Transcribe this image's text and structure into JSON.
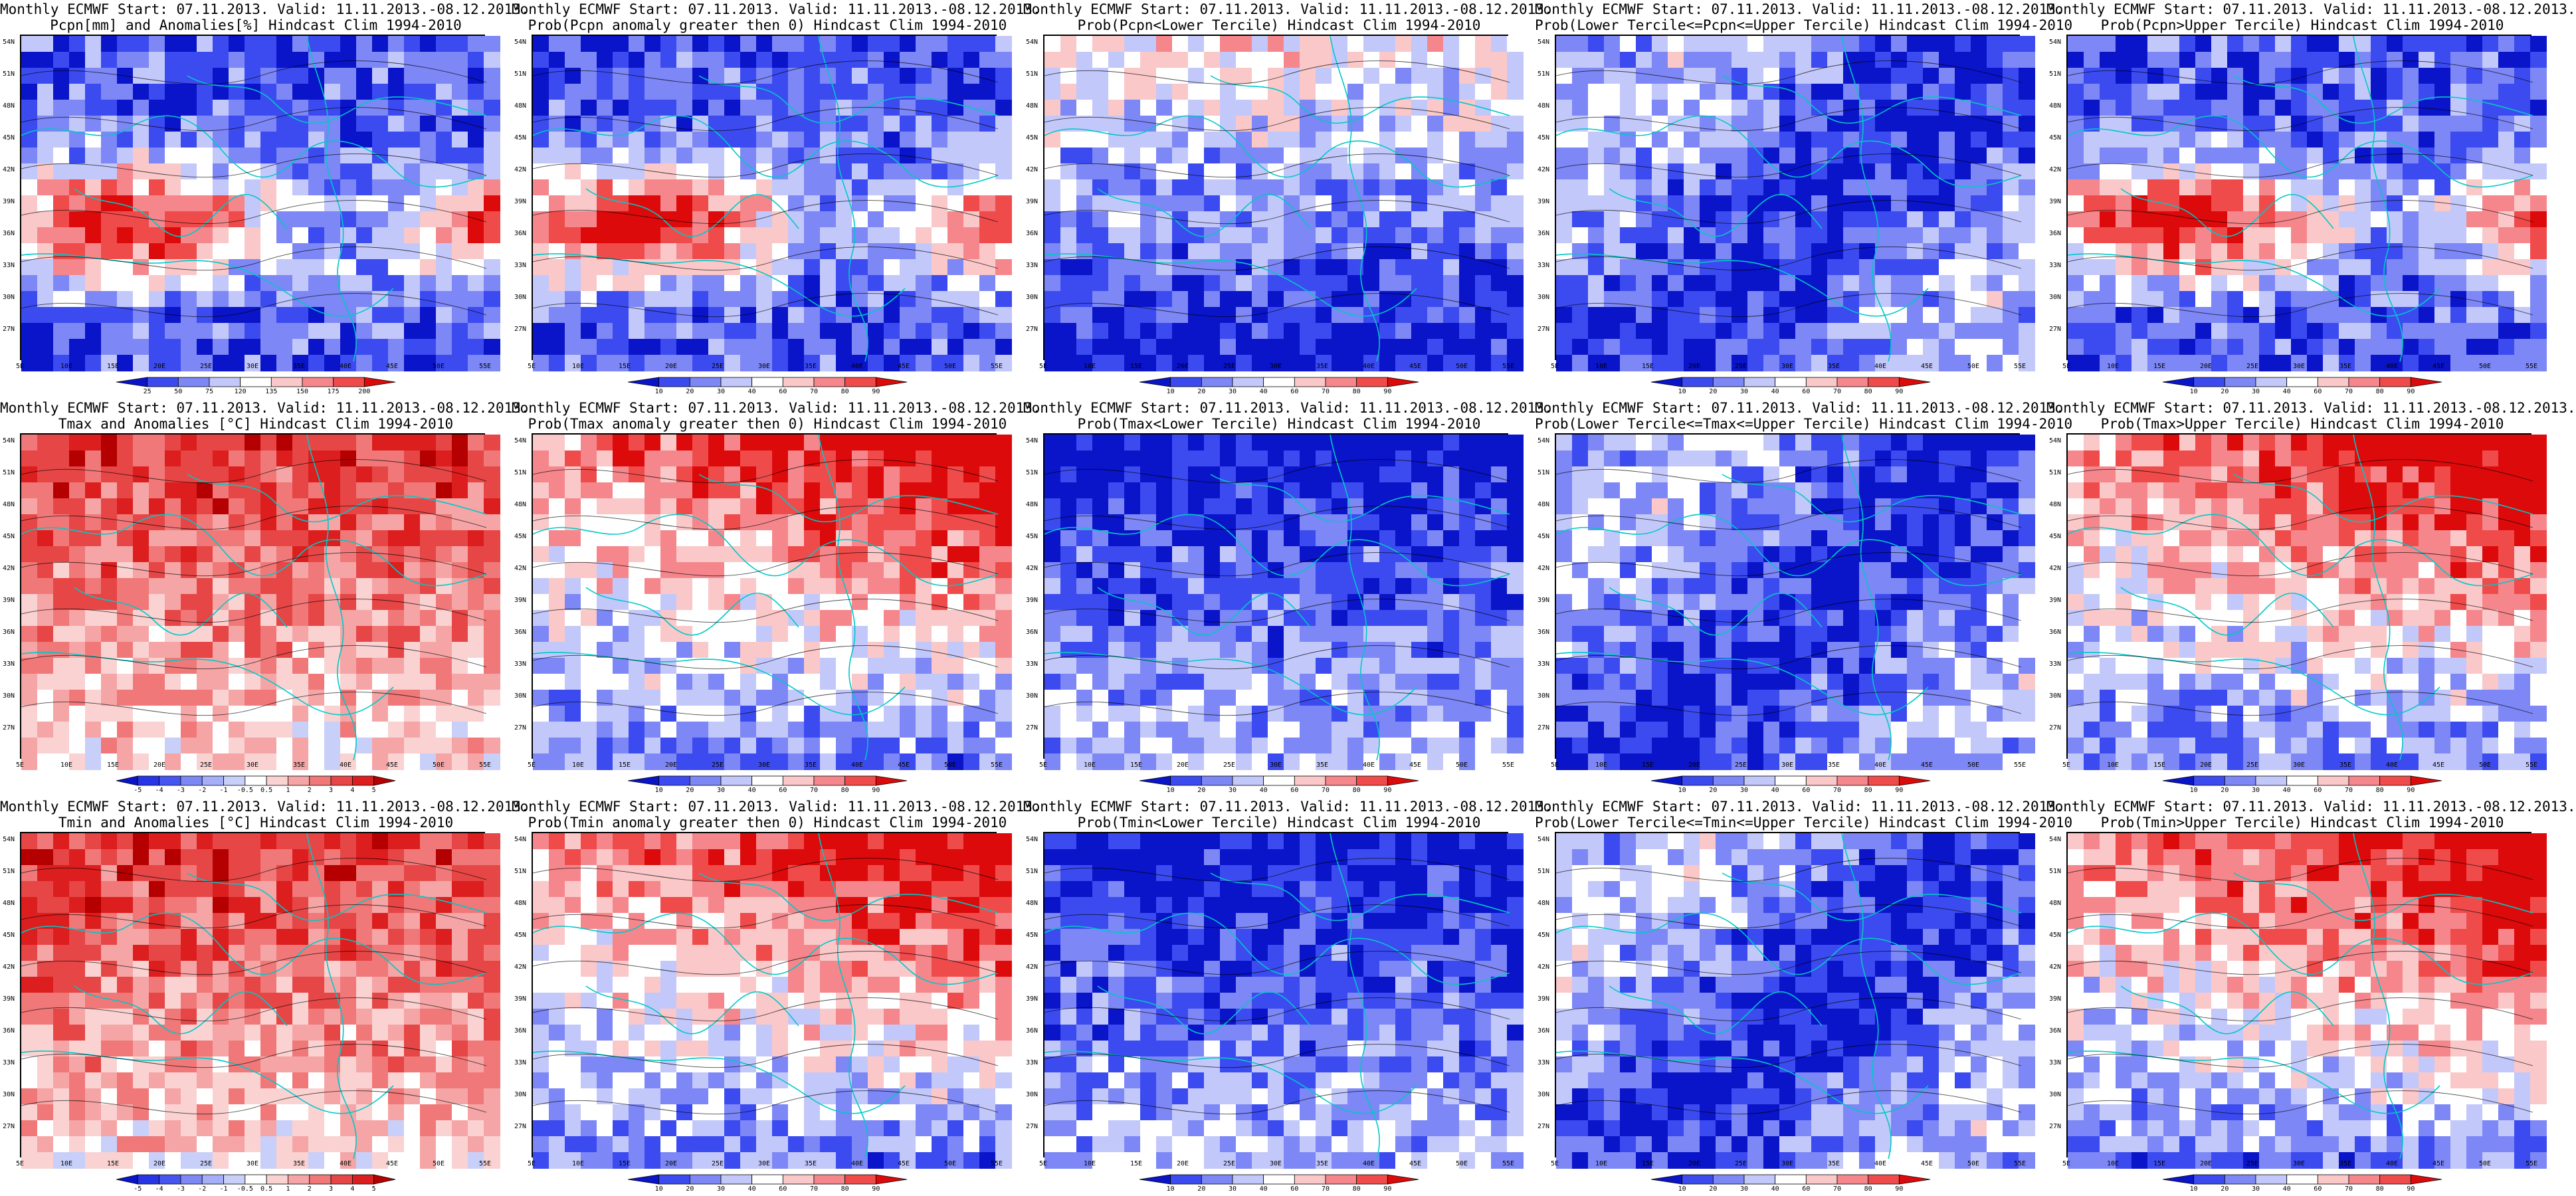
{
  "panels": [
    {
      "row": 0,
      "col": 0,
      "title1": "Monthly ECMWF Start: 07.11.2013. Valid: 11.11.2013.-08.12.2013.",
      "title2": "Pcpn[mm] and Anomalies[%] Hindcast Clim 1994-2010",
      "scale": "pcpn",
      "theme": "mixed"
    },
    {
      "row": 0,
      "col": 1,
      "title1": "Monthly ECMWF Start: 07.11.2013. Valid: 11.11.2013.-08.12.2013.",
      "title2": "Prob(Pcpn anomaly greater then 0) Hindcast Clim 1994-2010",
      "scale": "prob",
      "theme": "mixed"
    },
    {
      "row": 0,
      "col": 2,
      "title1": "Monthly ECMWF Start: 07.11.2013. Valid: 11.11.2013.-08.12.2013.",
      "title2": "Prob(Pcpn<Lower Tercile) Hindcast Clim 1994-2010",
      "scale": "prob",
      "theme": "blue-south"
    },
    {
      "row": 0,
      "col": 3,
      "title1": "Monthly ECMWF Start: 07.11.2013. Valid: 11.11.2013.-08.12.2013.",
      "title2": "Prob(Lower Tercile<=Pcpn<=Upper Tercile) Hindcast Clim 1994-2010",
      "scale": "prob",
      "theme": "blue-light"
    },
    {
      "row": 0,
      "col": 4,
      "title1": "Monthly ECMWF Start: 07.11.2013. Valid: 11.11.2013.-08.12.2013.",
      "title2": "Prob(Pcpn>Upper Tercile) Hindcast Clim 1994-2010",
      "scale": "prob",
      "theme": "mixed"
    },
    {
      "row": 1,
      "col": 0,
      "title1": "Monthly ECMWF Start: 07.11.2013. Valid: 11.11.2013.-08.12.2013.",
      "title2": "Tmax and Anomalies [°C] Hindcast Clim 1994-2010",
      "scale": "anom",
      "theme": "red-light"
    },
    {
      "row": 1,
      "col": 1,
      "title1": "Monthly ECMWF Start: 07.11.2013. Valid: 11.11.2013.-08.12.2013.",
      "title2": "Prob(Tmax anomaly greater then 0) Hindcast Clim 1994-2010",
      "scale": "prob",
      "theme": "red-north"
    },
    {
      "row": 1,
      "col": 2,
      "title1": "Monthly ECMWF Start: 07.11.2013. Valid: 11.11.2013.-08.12.2013.",
      "title2": "Prob(Tmax<Lower Tercile) Hindcast Clim 1994-2010",
      "scale": "prob",
      "theme": "blue-north"
    },
    {
      "row": 1,
      "col": 3,
      "title1": "Monthly ECMWF Start: 07.11.2013. Valid: 11.11.2013.-08.12.2013.",
      "title2": "Prob(Lower Tercile<=Tmax<=Upper Tercile) Hindcast Clim 1994-2010",
      "scale": "prob",
      "theme": "blue-light"
    },
    {
      "row": 1,
      "col": 4,
      "title1": "Monthly ECMWF Start: 07.11.2013. Valid: 11.11.2013.-08.12.2013.",
      "title2": "Prob(Tmax>Upper Tercile) Hindcast Clim 1994-2010",
      "scale": "prob",
      "theme": "red-north"
    },
    {
      "row": 2,
      "col": 0,
      "title1": "Monthly ECMWF Start: 07.11.2013. Valid: 11.11.2013.-08.12.2013.",
      "title2": "Tmin and Anomalies [°C] Hindcast Clim 1994-2010",
      "scale": "anom",
      "theme": "red-light"
    },
    {
      "row": 2,
      "col": 1,
      "title1": "Monthly ECMWF Start: 07.11.2013. Valid: 11.11.2013.-08.12.2013.",
      "title2": "Prob(Tmin anomaly greater then 0) Hindcast Clim 1994-2010",
      "scale": "prob",
      "theme": "red-north"
    },
    {
      "row": 2,
      "col": 2,
      "title1": "Monthly ECMWF Start: 07.11.2013. Valid: 11.11.2013.-08.12.2013.",
      "title2": "Prob(Tmin<Lower Tercile) Hindcast Clim 1994-2010",
      "scale": "prob",
      "theme": "blue-north"
    },
    {
      "row": 2,
      "col": 3,
      "title1": "Monthly ECMWF Start: 07.11.2013. Valid: 11.11.2013.-08.12.2013.",
      "title2": "Prob(Lower Tercile<=Tmin<=Upper Tercile) Hindcast Clim 1994-2010",
      "scale": "prob",
      "theme": "blue-light"
    },
    {
      "row": 2,
      "col": 4,
      "title1": "Monthly ECMWF Start: 07.11.2013. Valid: 11.11.2013.-08.12.2013.",
      "title2": "Prob(Tmin>Upper Tercile) Hindcast Clim 1994-2010",
      "scale": "prob",
      "theme": "red-north"
    }
  ],
  "lat_labels": [
    "54N",
    "51N",
    "48N",
    "45N",
    "42N",
    "39N",
    "36N",
    "33N",
    "30N",
    "27N"
  ],
  "lon_labels": [
    "5E",
    "10E",
    "15E",
    "20E",
    "25E",
    "30E",
    "35E",
    "40E",
    "45E",
    "50E",
    "55E"
  ],
  "scales": {
    "pcpn": {
      "labels": [
        "25",
        "50",
        "75",
        "120",
        "135",
        "150",
        "175",
        "200"
      ],
      "colors": [
        "#0a14c8",
        "#3c4bf0",
        "#7d87f5",
        "#c3c8fa",
        "#ffffff",
        "#fac8c8",
        "#f5878c",
        "#f04b4b",
        "#dc0a0a"
      ]
    },
    "prob": {
      "labels": [
        "10",
        "20",
        "30",
        "40",
        "60",
        "70",
        "80",
        "90"
      ],
      "colors": [
        "#0a14c8",
        "#3c4bf0",
        "#7d87f5",
        "#c3c8fa",
        "#ffffff",
        "#fac8c8",
        "#f5878c",
        "#f04b4b",
        "#dc0a0a"
      ]
    },
    "anom": {
      "labels": [
        "-5",
        "-4",
        "-3",
        "-2",
        "-1",
        "-0.5",
        "0.5",
        "1",
        "2",
        "3",
        "4",
        "5"
      ],
      "colors": [
        "#0a14c8",
        "#2835e6",
        "#4655f0",
        "#7d87f5",
        "#a5aff8",
        "#c8d0fa",
        "#ffffff",
        "#fad2d2",
        "#f5a5a5",
        "#f07878",
        "#e64646",
        "#dc1e1e",
        "#b40000"
      ]
    }
  },
  "colors": {
    "coast": "#00c8c8",
    "contour": "#000000"
  }
}
